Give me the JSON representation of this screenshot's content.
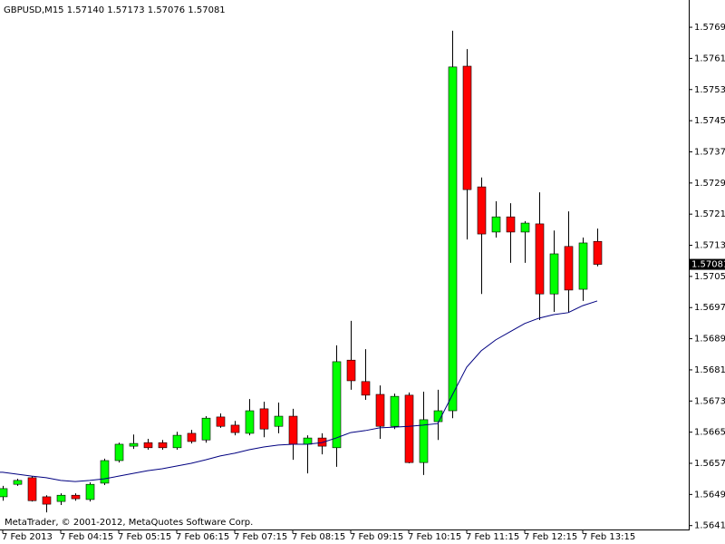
{
  "chart_data": {
    "type": "candlestick",
    "title": "GBPUSD,M15  1.57140 1.57173 1.57076 1.57081",
    "footer": "MetaTrader, © 2001-2012, MetaQuotes Software Corp.",
    "categories": [
      "7 Feb 2013",
      null,
      null,
      null,
      "7 Feb 04:15",
      null,
      null,
      null,
      "7 Feb 05:15",
      null,
      null,
      null,
      "7 Feb 06:15",
      null,
      null,
      null,
      "7 Feb 07:15",
      null,
      null,
      null,
      "7 Feb 08:15",
      null,
      null,
      null,
      "7 Feb 09:15",
      null,
      null,
      null,
      "7 Feb 10:15",
      null,
      null,
      null,
      "7 Feb 11:15",
      null,
      null,
      null,
      "7 Feb 12:15",
      null,
      null,
      null,
      "7 Feb 13:15",
      null
    ],
    "open": [
      1.56484,
      1.56516,
      1.56533,
      1.56484,
      1.56472,
      1.56488,
      1.56477,
      1.56519,
      1.56577,
      1.56614,
      1.56623,
      1.56623,
      1.5661,
      1.56647,
      1.5663,
      1.56689,
      1.56668,
      1.56647,
      1.5671,
      1.56665,
      1.56691,
      1.56619,
      1.56635,
      1.5661,
      1.56835,
      1.5678,
      1.56747,
      1.56665,
      1.56745,
      1.56572,
      1.56677,
      1.56705,
      1.5759,
      1.5728,
      1.57164,
      1.57203,
      1.57164,
      1.57185,
      1.57005,
      1.57127,
      1.57017,
      1.5714
    ],
    "high": [
      1.56512,
      1.5653,
      1.56537,
      1.56488,
      1.56493,
      1.56493,
      1.56521,
      1.56582,
      1.56623,
      1.56644,
      1.56633,
      1.5663,
      1.56651,
      1.56656,
      1.56691,
      1.56698,
      1.56679,
      1.56735,
      1.56728,
      1.56726,
      1.5671,
      1.56642,
      1.56647,
      1.56873,
      1.56936,
      1.56863,
      1.5677,
      1.56749,
      1.56752,
      1.56754,
      1.56759,
      1.57681,
      1.57634,
      1.57304,
      1.57243,
      1.57238,
      1.57192,
      1.57266,
      1.57168,
      1.57217,
      1.5715,
      1.57173
    ],
    "low": [
      1.56474,
      1.56512,
      1.56472,
      1.56444,
      1.56463,
      1.56474,
      1.56472,
      1.56514,
      1.56572,
      1.56607,
      1.56605,
      1.56605,
      1.56605,
      1.56621,
      1.56623,
      1.56661,
      1.56642,
      1.56642,
      1.56637,
      1.56647,
      1.56579,
      1.56544,
      1.56593,
      1.56561,
      1.56759,
      1.56733,
      1.56633,
      1.56658,
      1.5657,
      1.5654,
      1.5663,
      1.56686,
      1.57145,
      1.57005,
      1.5715,
      1.57085,
      1.57085,
      1.56938,
      1.56959,
      1.56957,
      1.56987,
      1.57076
    ],
    "close": [
      1.56505,
      1.56526,
      1.56474,
      1.56465,
      1.56488,
      1.56479,
      1.56516,
      1.56577,
      1.56619,
      1.56621,
      1.5661,
      1.5661,
      1.56642,
      1.56626,
      1.56686,
      1.56665,
      1.56649,
      1.56705,
      1.56658,
      1.56691,
      1.56619,
      1.56635,
      1.56614,
      1.56831,
      1.56782,
      1.56745,
      1.56665,
      1.56742,
      1.56572,
      1.56682,
      1.56705,
      1.57588,
      1.57273,
      1.57159,
      1.57203,
      1.57164,
      1.57187,
      1.57005,
      1.57108,
      1.57015,
      1.57136,
      1.57081
    ],
    "ma": [
      1.56547,
      1.56542,
      1.56537,
      1.56533,
      1.56526,
      1.56523,
      1.56526,
      1.5653,
      1.56537,
      1.56544,
      1.56551,
      1.56556,
      1.56563,
      1.5657,
      1.56579,
      1.56589,
      1.56596,
      1.56605,
      1.56612,
      1.56617,
      1.56619,
      1.56619,
      1.56623,
      1.56635,
      1.56649,
      1.56654,
      1.56661,
      1.56663,
      1.56665,
      1.56668,
      1.56672,
      1.56745,
      1.56817,
      1.56859,
      1.56887,
      1.56908,
      1.56929,
      1.56943,
      1.56952,
      1.56957,
      1.56975,
      1.56987
    ],
    "up_color": "#00ff00",
    "down_color": "#ff0000",
    "ma_color": "#000080",
    "ylim": [
      1.564,
      1.5776
    ],
    "yticks": [
      {
        "value": 1.5641,
        "label": "1.56410"
      },
      {
        "value": 1.5649,
        "label": "1.56490"
      },
      {
        "value": 1.5657,
        "label": "1.56570"
      },
      {
        "value": 1.5665,
        "label": "1.56650"
      },
      {
        "value": 1.5673,
        "label": "1.56730"
      },
      {
        "value": 1.5681,
        "label": "1.56810"
      },
      {
        "value": 1.5689,
        "label": "1.56890"
      },
      {
        "value": 1.5697,
        "label": "1.56970"
      },
      {
        "value": 1.5705,
        "label": "1.57050"
      },
      {
        "value": 1.5713,
        "label": "1.57130"
      },
      {
        "value": 1.5721,
        "label": "1.57210"
      },
      {
        "value": 1.5729,
        "label": "1.57290"
      },
      {
        "value": 1.5737,
        "label": "1.57370"
      },
      {
        "value": 1.5745,
        "label": "1.57450"
      },
      {
        "value": 1.5753,
        "label": "1.57530"
      },
      {
        "value": 1.5761,
        "label": "1.57610"
      },
      {
        "value": 1.5769,
        "label": "1.57690"
      }
    ]
  }
}
